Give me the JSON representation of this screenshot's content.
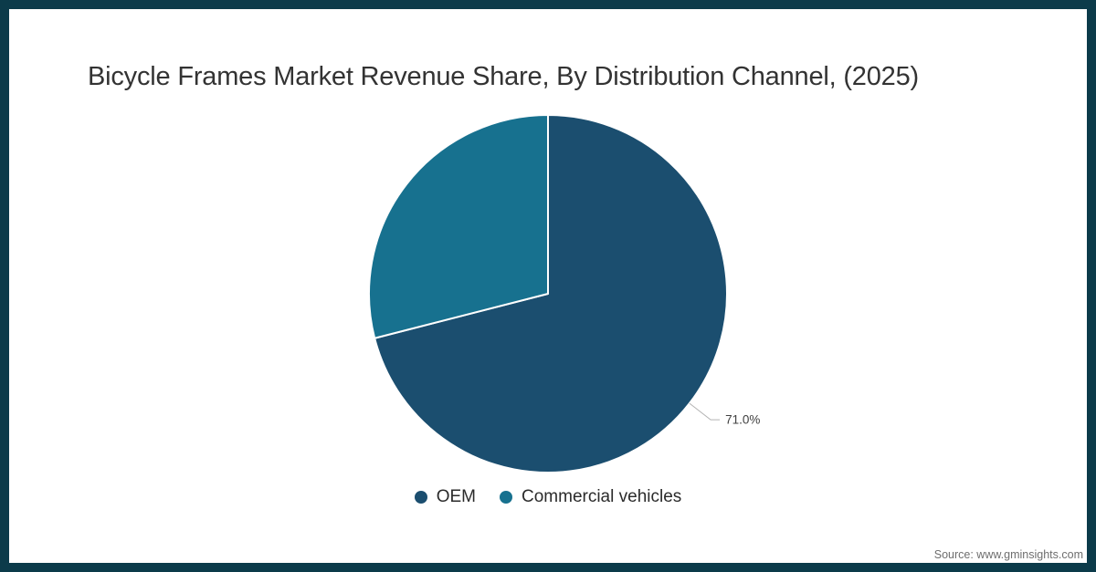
{
  "frame": {
    "border_color": "#0c3b4a",
    "background_color": "#ffffff"
  },
  "title": "Bicycle Frames Market Revenue Share, By Distribution Channel, (2025)",
  "chart_data": {
    "type": "pie",
    "title": "Bicycle Frames Market Revenue Share, By Distribution Channel, (2025)",
    "start_angle_deg_from_top": 0,
    "direction": "clockwise",
    "series": [
      {
        "name": "OEM",
        "value": 71.0,
        "color": "#1b4e6f"
      },
      {
        "name": "Commercial vehicles",
        "value": 29.0,
        "color": "#17718f"
      }
    ],
    "data_labels": [
      {
        "series_index": 0,
        "text": "71.0%"
      }
    ],
    "slice_divider_color": "#ffffff",
    "leader_line_color": "#b3b3b3",
    "label_text_color": "#404040",
    "legend_position": "bottom"
  },
  "source": "Source: www.gminsights.com"
}
